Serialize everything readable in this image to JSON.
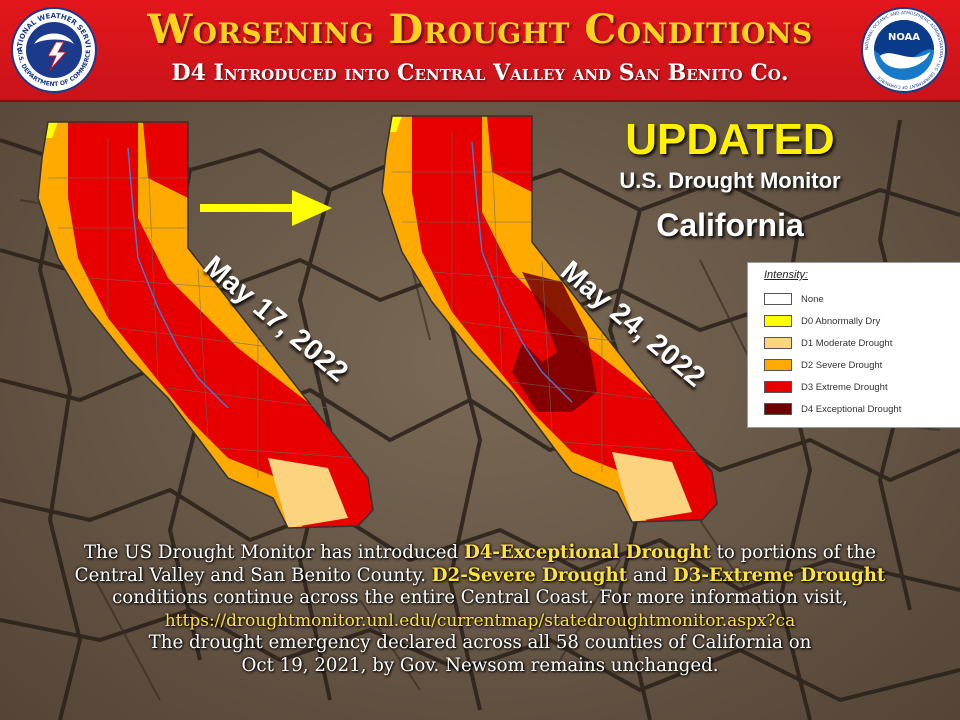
{
  "header": {
    "title": "Worsening Drought Conditions",
    "subtitle": "D4 Introduced into Central Valley and San Benito Co.",
    "left_logo": {
      "top_text": "NATIONAL WEATHER SERVICE",
      "bottom_text": "U.S. DEPARTMENT OF COMMERCE"
    },
    "right_logo": {
      "center_text": "NOAA",
      "ring_text": "NATIONAL OCEANIC AND ATMOSPHERIC ADMINISTRATION • U.S. DEPARTMENT OF COMMERCE"
    }
  },
  "panel": {
    "updated": "UPDATED",
    "source": "U.S. Drought Monitor",
    "state": "California"
  },
  "maps": [
    {
      "date": "May 17, 2022",
      "has_d4": false
    },
    {
      "date": "May 24, 2022",
      "has_d4": true
    }
  ],
  "legend": {
    "title": "Intensity:",
    "items": [
      {
        "label": "None",
        "color": "#ffffff"
      },
      {
        "label": "D0 Abnormally Dry",
        "color": "#ffff00"
      },
      {
        "label": "D1 Moderate Drought",
        "color": "#fcd37f"
      },
      {
        "label": "D2 Severe Drought",
        "color": "#ffaa00"
      },
      {
        "label": "D3 Extreme Drought",
        "color": "#e60000"
      },
      {
        "label": "D4 Exceptional Drought",
        "color": "#730000"
      }
    ]
  },
  "body": {
    "p1_a": "The US Drought Monitor has introduced ",
    "p1_hl": "D4-Exceptional Drought",
    "p1_b": " to portions of the",
    "p2_a": "Central Valley and San Benito County. ",
    "p2_hl1": "D2-Severe Drought",
    "p2_b": " and ",
    "p2_hl2": "D3-Extreme Drought",
    "p3": "conditions continue across the entire Central  Coast.  For more information visit,",
    "url": "https://droughtmonitor.unl.edu/currentmap/statedroughtmonitor.aspx?ca",
    "p4": "The drought emergency declared across all 58 counties of California on",
    "p5": "Oct 19, 2021, by Gov. Newsom remains unchanged."
  },
  "colors": {
    "header_red": "#e3161b",
    "title_yellow": "#ffd21f",
    "updated_yellow": "#fff100",
    "arrow_yellow": "#ffff00"
  }
}
